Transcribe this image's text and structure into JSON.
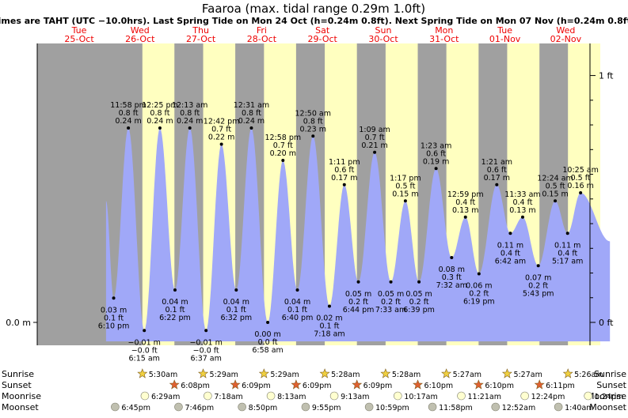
{
  "chart_data": {
    "type": "area",
    "title": "Faaroa (max. tidal range 0.29m 1.0ft)",
    "subtitle": "Times are TAHT (UTC −10.0hrs). Last Spring Tide on Mon 24 Oct (h=0.24m 0.8ft). Next Spring Tide on Mon 07 Nov (h=0.24m 0.8ft)",
    "colors": {
      "tide_fill": "#a0a8f8",
      "day": "#ffffc0",
      "night": "#a0a0a0",
      "date_text": "#ee0000",
      "sun_icon": "#f0d040",
      "sunset_icon": "#e06030",
      "moonrise_icon": "#ffffd0",
      "moonset_icon": "#c0c0b0"
    },
    "days": [
      {
        "dow": "Tue",
        "date": "25-Oct"
      },
      {
        "dow": "Wed",
        "date": "26-Oct"
      },
      {
        "dow": "Thu",
        "date": "27-Oct"
      },
      {
        "dow": "Fri",
        "date": "28-Oct"
      },
      {
        "dow": "Sat",
        "date": "29-Oct"
      },
      {
        "dow": "Sun",
        "date": "30-Oct"
      },
      {
        "dow": "Mon",
        "date": "31-Oct"
      },
      {
        "dow": "Tue",
        "date": "01-Nov"
      },
      {
        "dow": "Wed",
        "date": "02-Nov"
      }
    ],
    "y_axis_left": {
      "label": "0.0 m",
      "value_m": 0.0
    },
    "y_axis_right": [
      {
        "label": "1 ft",
        "value_m": 0.3048
      },
      {
        "label": "0 ft",
        "value_m": 0.0
      }
    ],
    "x_start": "2022-10-24 12:00",
    "x_end": "2022-11-02 22:00",
    "tides": [
      {
        "t": "2022-10-25 18:10",
        "time": "6:10 pm",
        "m": 0.03,
        "m_label": "0.03 m",
        "ft": "0.1 ft",
        "type": "low"
      },
      {
        "t": "2022-10-25 23:58",
        "time": "11:58 pm",
        "m": 0.24,
        "m_label": "0.24 m",
        "ft": "0.8 ft",
        "type": "high"
      },
      {
        "t": "2022-10-26 06:15",
        "time": "6:15 am",
        "m": -0.01,
        "m_label": "−0.01 m",
        "ft": "−0.0 ft",
        "type": "low"
      },
      {
        "t": "2022-10-26 12:25",
        "time": "12:25 pm",
        "m": 0.24,
        "m_label": "0.24 m",
        "ft": "0.8 ft",
        "type": "high"
      },
      {
        "t": "2022-10-26 18:22",
        "time": "6:22 pm",
        "m": 0.04,
        "m_label": "0.04 m",
        "ft": "0.1 ft",
        "type": "low"
      },
      {
        "t": "2022-10-27 00:13",
        "time": "12:13 am",
        "m": 0.24,
        "m_label": "0.24 m",
        "ft": "0.8 ft",
        "type": "high"
      },
      {
        "t": "2022-10-27 06:37",
        "time": "6:37 am",
        "m": -0.01,
        "m_label": "−0.01 m",
        "ft": "−0.0 ft",
        "type": "low"
      },
      {
        "t": "2022-10-27 12:42",
        "time": "12:42 pm",
        "m": 0.22,
        "m_label": "0.22 m",
        "ft": "0.7 ft",
        "type": "high"
      },
      {
        "t": "2022-10-27 18:32",
        "time": "6:32 pm",
        "m": 0.04,
        "m_label": "0.04 m",
        "ft": "0.1 ft",
        "type": "low"
      },
      {
        "t": "2022-10-28 00:31",
        "time": "12:31 am",
        "m": 0.24,
        "m_label": "0.24 m",
        "ft": "0.8 ft",
        "type": "high"
      },
      {
        "t": "2022-10-28 06:58",
        "time": "6:58 am",
        "m": 0.0,
        "m_label": "0.00 m",
        "ft": "0.0 ft",
        "type": "low"
      },
      {
        "t": "2022-10-28 12:58",
        "time": "12:58 pm",
        "m": 0.2,
        "m_label": "0.20 m",
        "ft": "0.7 ft",
        "type": "high"
      },
      {
        "t": "2022-10-28 18:40",
        "time": "6:40 pm",
        "m": 0.04,
        "m_label": "0.04 m",
        "ft": "0.1 ft",
        "type": "low"
      },
      {
        "t": "2022-10-29 00:50",
        "time": "12:50 am",
        "m": 0.23,
        "m_label": "0.23 m",
        "ft": "0.8 ft",
        "type": "high"
      },
      {
        "t": "2022-10-29 07:18",
        "time": "7:18 am",
        "m": 0.02,
        "m_label": "0.02 m",
        "ft": "0.1 ft",
        "type": "low"
      },
      {
        "t": "2022-10-29 13:11",
        "time": "1:11 pm",
        "m": 0.17,
        "m_label": "0.17 m",
        "ft": "0.6 ft",
        "type": "high"
      },
      {
        "t": "2022-10-29 18:44",
        "time": "6:44 pm",
        "m": 0.05,
        "m_label": "0.05 m",
        "ft": "0.2 ft",
        "type": "low"
      },
      {
        "t": "2022-10-30 01:09",
        "time": "1:09 am",
        "m": 0.21,
        "m_label": "0.21 m",
        "ft": "0.7 ft",
        "type": "high"
      },
      {
        "t": "2022-10-30 07:33",
        "time": "7:33 am",
        "m": 0.05,
        "m_label": "0.05 m",
        "ft": "0.2 ft",
        "type": "low"
      },
      {
        "t": "2022-10-30 13:17",
        "time": "1:17 pm",
        "m": 0.15,
        "m_label": "0.15 m",
        "ft": "0.5 ft",
        "type": "high"
      },
      {
        "t": "2022-10-30 18:39",
        "time": "6:39 pm",
        "m": 0.05,
        "m_label": "0.05 m",
        "ft": "0.2 ft",
        "type": "low"
      },
      {
        "t": "2022-10-31 01:23",
        "time": "1:23 am",
        "m": 0.19,
        "m_label": "0.19 m",
        "ft": "0.6 ft",
        "type": "high"
      },
      {
        "t": "2022-10-31 07:32",
        "time": "7:32 am",
        "m": 0.08,
        "m_label": "0.08 m",
        "ft": "0.3 ft",
        "type": "low"
      },
      {
        "t": "2022-10-31 12:59",
        "time": "12:59 pm",
        "m": 0.13,
        "m_label": "0.13 m",
        "ft": "0.4 ft",
        "type": "high"
      },
      {
        "t": "2022-10-31 18:19",
        "time": "6:19 pm",
        "m": 0.06,
        "m_label": "0.06 m",
        "ft": "0.2 ft",
        "type": "low"
      },
      {
        "t": "2022-11-01 01:21",
        "time": "1:21 am",
        "m": 0.17,
        "m_label": "0.17 m",
        "ft": "0.6 ft",
        "type": "high"
      },
      {
        "t": "2022-11-01 06:42",
        "time": "6:42 am",
        "m": 0.11,
        "m_label": "0.11 m",
        "ft": "0.4 ft",
        "type": "low"
      },
      {
        "t": "2022-11-01 11:33",
        "time": "11:33 am",
        "m": 0.13,
        "m_label": "0.13 m",
        "ft": "0.4 ft",
        "type": "high"
      },
      {
        "t": "2022-11-01 17:43",
        "time": "5:43 pm",
        "m": 0.07,
        "m_label": "0.07 m",
        "ft": "0.2 ft",
        "type": "low"
      },
      {
        "t": "2022-11-02 00:24",
        "time": "12:24 am",
        "m": 0.15,
        "m_label": "0.15 m",
        "ft": "0.5 ft",
        "type": "high"
      },
      {
        "t": "2022-11-02 05:17",
        "time": "5:17 am",
        "m": 0.11,
        "m_label": "0.11 m",
        "ft": "0.4 ft",
        "type": "low"
      },
      {
        "t": "2022-11-02 10:25",
        "time": "10:25 am",
        "m": 0.16,
        "m_label": "0.16 m",
        "ft": "0.5 ft",
        "type": "high"
      }
    ],
    "daylight": [
      {
        "rise": "2022-10-26 05:30",
        "set": "2022-10-26 18:08"
      },
      {
        "rise": "2022-10-27 05:29",
        "set": "2022-10-27 18:09"
      },
      {
        "rise": "2022-10-28 05:29",
        "set": "2022-10-28 18:09"
      },
      {
        "rise": "2022-10-29 05:28",
        "set": "2022-10-29 18:09"
      },
      {
        "rise": "2022-10-30 05:28",
        "set": "2022-10-30 18:10"
      },
      {
        "rise": "2022-10-31 05:27",
        "set": "2022-10-31 18:10"
      },
      {
        "rise": "2022-11-01 05:27",
        "set": "2022-11-01 18:11"
      },
      {
        "rise": "2022-11-02 05:26",
        "set": "2022-11-02 18:11"
      }
    ],
    "rows": [
      {
        "label": "Sunrise",
        "icon": "sunrise-icon",
        "events": [
          {
            "t": "2022-10-26 05:30",
            "time": "5:30am"
          },
          {
            "t": "2022-10-27 05:29",
            "time": "5:29am"
          },
          {
            "t": "2022-10-28 05:29",
            "time": "5:29am"
          },
          {
            "t": "2022-10-29 05:28",
            "time": "5:28am"
          },
          {
            "t": "2022-10-30 05:28",
            "time": "5:28am"
          },
          {
            "t": "2022-10-31 05:27",
            "time": "5:27am"
          },
          {
            "t": "2022-11-01 05:27",
            "time": "5:27am"
          },
          {
            "t": "2022-11-02 05:26",
            "time": "5:26am"
          }
        ]
      },
      {
        "label": "Sunset",
        "icon": "sunset-icon",
        "events": [
          {
            "t": "2022-10-26 18:08",
            "time": "6:08pm"
          },
          {
            "t": "2022-10-27 18:09",
            "time": "6:09pm"
          },
          {
            "t": "2022-10-28 18:09",
            "time": "6:09pm"
          },
          {
            "t": "2022-10-29 18:09",
            "time": "6:09pm"
          },
          {
            "t": "2022-10-30 18:10",
            "time": "6:10pm"
          },
          {
            "t": "2022-10-31 18:10",
            "time": "6:10pm"
          },
          {
            "t": "2022-11-01 18:11",
            "time": "6:11pm"
          }
        ]
      },
      {
        "label": "Moonrise",
        "icon": "moonrise-icon",
        "events": [
          {
            "t": "2022-10-26 06:29",
            "time": "6:29am"
          },
          {
            "t": "2022-10-27 07:18",
            "time": "7:18am"
          },
          {
            "t": "2022-10-28 08:13",
            "time": "8:13am"
          },
          {
            "t": "2022-10-29 09:13",
            "time": "9:13am"
          },
          {
            "t": "2022-10-30 10:17",
            "time": "10:17am"
          },
          {
            "t": "2022-10-31 11:21",
            "time": "11:21am"
          },
          {
            "t": "2022-11-01 12:24",
            "time": "12:24pm"
          },
          {
            "t": "2022-11-02 13:24",
            "time": "1:24pm"
          }
        ]
      },
      {
        "label": "Moonset",
        "icon": "moonset-icon",
        "events": [
          {
            "t": "2022-10-25 18:45",
            "time": "6:45pm"
          },
          {
            "t": "2022-10-26 19:46",
            "time": "7:46pm"
          },
          {
            "t": "2022-10-27 20:50",
            "time": "8:50pm"
          },
          {
            "t": "2022-10-28 21:55",
            "time": "9:55pm"
          },
          {
            "t": "2022-10-29 22:59",
            "time": "10:59pm"
          },
          {
            "t": "2022-10-30 23:58",
            "time": "11:58pm"
          },
          {
            "t": "2022-11-01 00:52",
            "time": "12:52am"
          },
          {
            "t": "2022-11-02 01:40",
            "time": "1:40am"
          }
        ]
      }
    ]
  }
}
